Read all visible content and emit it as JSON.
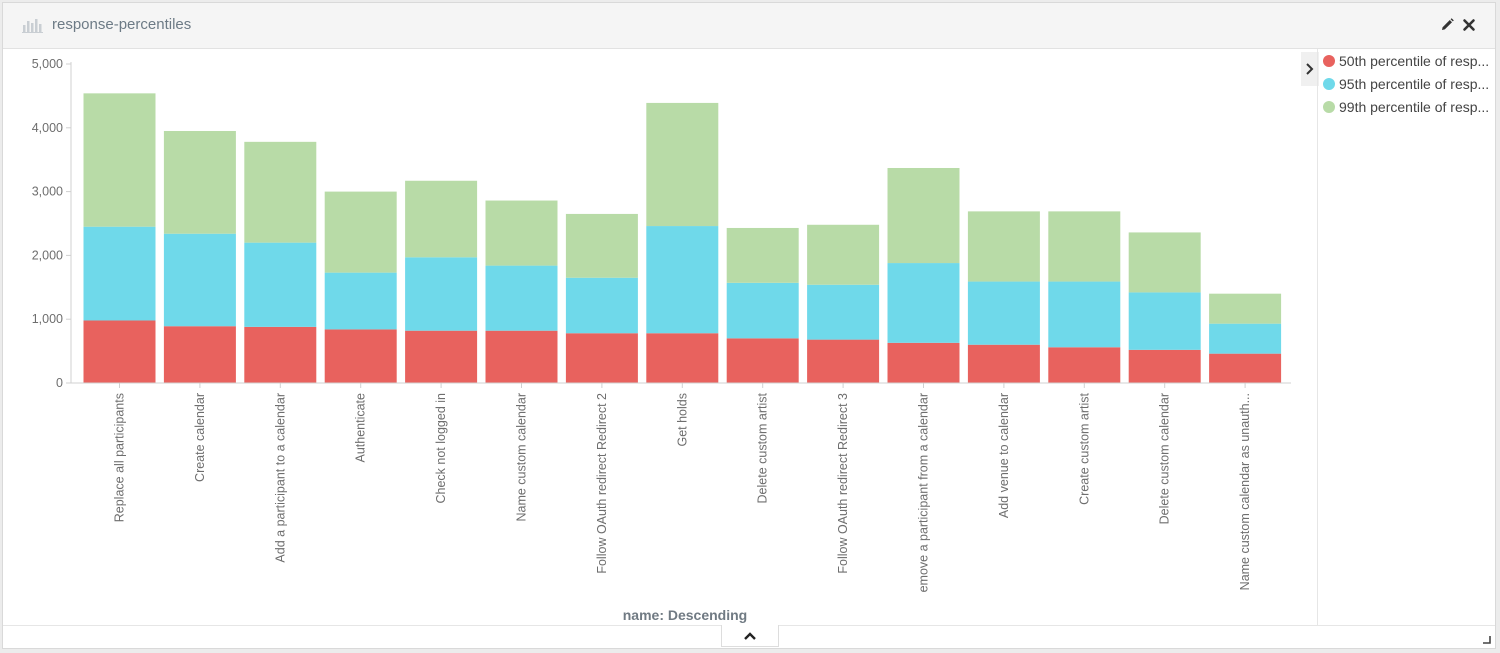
{
  "panel": {
    "title": "response-percentiles",
    "icons": {
      "header": "bar-chart-icon",
      "edit": "pencil-icon",
      "close": "close-icon",
      "legend_toggle": "chevron-right-icon",
      "collapse": "chevron-up-icon",
      "resize": "resize-corner-icon"
    }
  },
  "chart_data": {
    "type": "bar",
    "stacked": true,
    "categories": [
      "Replace all participants",
      "Create calendar",
      "Add a participant to a calendar",
      "Authenticate",
      "Check not logged in",
      "Name custom calendar",
      "Follow OAuth redirect Redirect 2",
      "Get holds",
      "Delete custom artist",
      "Follow OAuth redirect Redirect 3",
      "emove a participant from a calendar",
      "Add venue to calendar",
      "Create custom artist",
      "Delete custom calendar",
      "Name custom calendar as unauth..."
    ],
    "series": [
      {
        "name": "50th percentile of resp...",
        "color": "#e8625e",
        "values": [
          980,
          890,
          880,
          840,
          820,
          820,
          780,
          780,
          700,
          680,
          630,
          600,
          560,
          520,
          460
        ]
      },
      {
        "name": "95th percentile of resp...",
        "color": "#6fd9ea",
        "values": [
          1470,
          1450,
          1320,
          890,
          1150,
          1020,
          870,
          1680,
          870,
          860,
          1250,
          990,
          1030,
          900,
          470
        ]
      },
      {
        "name": "99th percentile of resp...",
        "color": "#b8dba7",
        "values": [
          2090,
          1610,
          1580,
          1270,
          1200,
          1020,
          1000,
          1930,
          860,
          940,
          1490,
          1100,
          1100,
          940,
          470
        ]
      }
    ],
    "yticks": [
      "0",
      "1,000",
      "2,000",
      "3,000",
      "4,000",
      "5,000"
    ],
    "ylim": [
      0,
      5000
    ],
    "xlabel": "name: Descending",
    "ylabel": "",
    "legend_position": "right",
    "grid": false
  }
}
